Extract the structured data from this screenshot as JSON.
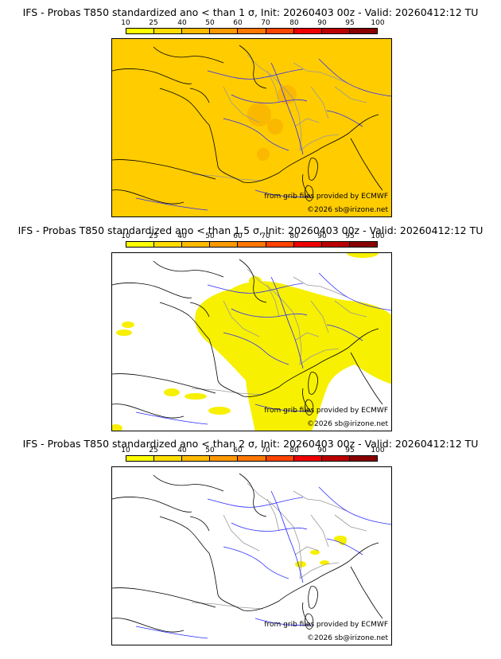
{
  "panels": [
    {
      "title": "IFS - Probas T850  standardized ano < than 1 σ, Init: 20260403 00z - Valid: 20260412:12 TU",
      "source": "from grib files provided by ECMWF",
      "copyright": "©2026 sb@irizone.net",
      "field": "high"
    },
    {
      "title": "IFS - Probas T850  standardized ano < than 1.5 σ, Init: 20260403 00z - Valid: 20260412:12 TU",
      "source": "from grib files provided by ECMWF",
      "copyright": "©2026 sb@irizone.net",
      "field": "medium"
    },
    {
      "title": "IFS - Probas T850  standardized ano < than 2 σ, Init: 20260403 00z - Valid: 20260412:12 TU",
      "source": "from grib files provided by ECMWF",
      "copyright": "©2026 sb@irizone.net",
      "field": "low"
    }
  ],
  "colorbar": {
    "ticks": [
      "10",
      "25",
      "40",
      "50",
      "60",
      "70",
      "80",
      "90",
      "95",
      "100"
    ],
    "colors": [
      "#ffff00",
      "#ffdd00",
      "#ffbb00",
      "#ff9900",
      "#ff7700",
      "#ff4400",
      "#ee0000",
      "#bb0000",
      "#880000"
    ]
  },
  "map_colors": {
    "coast": "#000000",
    "rivers": "#2a2aff",
    "borders": "#999999",
    "yellow": "#f7f000",
    "orange": "#ffcc00",
    "orange_dark": "#f5a800"
  }
}
